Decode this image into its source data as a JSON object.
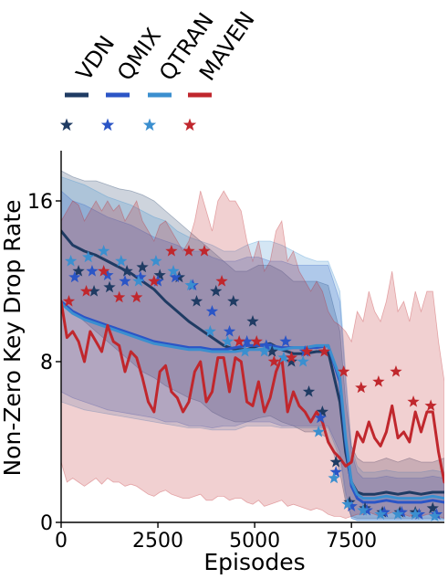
{
  "chart_data": {
    "type": "line",
    "title": "",
    "xlabel": "Episodes",
    "ylabel": "Non-Zero Key Drop Rate",
    "xlim": [
      0,
      9900
    ],
    "ylim": [
      0,
      18.5
    ],
    "xticks": [
      0,
      2500,
      5000,
      7500
    ],
    "xtick_labels": [
      "0",
      "2500",
      "5000",
      "7500"
    ],
    "yticks": [
      0,
      8,
      16
    ],
    "ytick_labels": [
      "0",
      "8",
      "16"
    ],
    "grid": false,
    "legend_position": "top",
    "series": [
      {
        "name": "VDN",
        "color": "#1f3b63",
        "x": [
          0,
          300,
          600,
          900,
          1200,
          1500,
          1800,
          2100,
          2400,
          2700,
          3000,
          3300,
          3600,
          3900,
          4200,
          4500,
          4800,
          5100,
          5400,
          5700,
          6000,
          6300,
          6600,
          6900,
          7200,
          7350,
          7500,
          7650,
          7800,
          8100,
          8400,
          8700,
          9000,
          9300,
          9600,
          9900
        ],
        "y": [
          14.5,
          13.8,
          13.5,
          13.3,
          13.0,
          12.7,
          12.4,
          12.0,
          11.6,
          11.0,
          10.5,
          10.0,
          9.6,
          9.2,
          8.8,
          8.6,
          8.6,
          8.8,
          8.9,
          8.6,
          8.4,
          8.4,
          8.5,
          8.5,
          6.0,
          3.5,
          2.0,
          1.5,
          1.4,
          1.4,
          1.5,
          1.4,
          1.5,
          1.4,
          1.5,
          1.5
        ],
        "lower": [
          11.0,
          10.5,
          10.0,
          9.5,
          9.0,
          8.5,
          8.0,
          7.5,
          7.2,
          6.8,
          6.5,
          6.2,
          6.0,
          5.5,
          5.2,
          5.0,
          5.0,
          5.2,
          5.3,
          5.0,
          4.8,
          4.5,
          4.5,
          4.2,
          2.5,
          1.0,
          0.3,
          0.2,
          0.2,
          0.2,
          0.2,
          0.2,
          0.2,
          0.2,
          0.2,
          0.2
        ],
        "upper": [
          17.5,
          17.2,
          17.0,
          17.0,
          16.8,
          16.6,
          16.5,
          16.3,
          16.0,
          15.5,
          15.0,
          14.5,
          14.0,
          13.5,
          13.0,
          12.5,
          12.5,
          12.8,
          12.8,
          12.5,
          12.0,
          12.0,
          12.0,
          11.8,
          9.5,
          6.0,
          3.8,
          3.2,
          3.0,
          3.0,
          3.2,
          3.0,
          3.2,
          3.0,
          3.0,
          3.2
        ],
        "markers_x": [
          450,
          850,
          1250,
          1700,
          2100,
          2550,
          3050,
          3500,
          4000,
          4450,
          4950,
          5450,
          5950,
          6400,
          6750,
          7100,
          7450,
          7850,
          8300,
          8750,
          9150,
          9600
        ],
        "markers_y": [
          12.5,
          11.5,
          11.7,
          12.5,
          12.7,
          12.3,
          12.2,
          11.0,
          11.5,
          11.0,
          10.0,
          8.5,
          8.0,
          6.5,
          5.5,
          3.0,
          1.0,
          0.7,
          0.5,
          0.5,
          0.5,
          0.7
        ]
      },
      {
        "name": "QMIX",
        "color": "#2b55c6",
        "x": [
          0,
          300,
          600,
          900,
          1200,
          1500,
          1800,
          2100,
          2400,
          2700,
          3000,
          3300,
          3600,
          3900,
          4200,
          4500,
          4800,
          5100,
          5400,
          5700,
          6000,
          6300,
          6600,
          6900,
          7200,
          7350,
          7500,
          7650,
          7800,
          8100,
          8400,
          8700,
          9000,
          9300,
          9600,
          9900
        ],
        "y": [
          11.0,
          10.5,
          10.2,
          10.0,
          9.8,
          9.6,
          9.4,
          9.2,
          9.0,
          8.9,
          8.8,
          8.7,
          8.7,
          8.6,
          8.6,
          8.7,
          8.8,
          8.8,
          8.8,
          8.7,
          8.7,
          8.7,
          8.7,
          8.8,
          7.0,
          4.0,
          1.8,
          1.2,
          1.0,
          1.0,
          1.1,
          1.0,
          1.0,
          1.0,
          1.1,
          1.0
        ],
        "lower": [
          6.5,
          6.2,
          6.0,
          5.8,
          5.6,
          5.5,
          5.4,
          5.3,
          5.2,
          5.0,
          5.0,
          4.8,
          4.8,
          4.7,
          4.8,
          4.8,
          5.0,
          5.0,
          5.0,
          4.8,
          4.8,
          4.8,
          4.8,
          4.8,
          3.5,
          1.5,
          0.2,
          0.1,
          0.1,
          0.1,
          0.1,
          0.1,
          0.1,
          0.1,
          0.1,
          0.1
        ],
        "upper": [
          16.5,
          16.0,
          15.8,
          15.5,
          15.2,
          15.0,
          14.8,
          14.5,
          14.2,
          14.0,
          13.8,
          13.5,
          13.5,
          13.2,
          13.0,
          13.0,
          13.2,
          13.2,
          13.0,
          13.0,
          12.8,
          12.8,
          12.8,
          12.8,
          11.0,
          7.0,
          3.5,
          2.5,
          2.2,
          2.2,
          2.3,
          2.2,
          2.2,
          2.2,
          2.3,
          2.2
        ],
        "markers_x": [
          350,
          800,
          1200,
          1650,
          2050,
          2500,
          2950,
          3400,
          3900,
          4350,
          4800,
          5300,
          5800,
          6300,
          6700,
          7100,
          7500,
          7900,
          8350,
          8800,
          9250,
          9700
        ],
        "markers_y": [
          12.2,
          12.5,
          12.3,
          12.0,
          12.2,
          12.0,
          12.2,
          11.8,
          10.5,
          9.5,
          9.0,
          8.8,
          9.0,
          8.5,
          5.2,
          2.5,
          0.8,
          0.6,
          0.5,
          0.5,
          0.4,
          0.4
        ]
      },
      {
        "name": "QTRAN",
        "color": "#3b8fcf",
        "x": [
          0,
          300,
          600,
          900,
          1200,
          1500,
          1800,
          2100,
          2400,
          2700,
          3000,
          3300,
          3600,
          3900,
          4200,
          4500,
          4800,
          5100,
          5400,
          5700,
          6000,
          6300,
          6600,
          6900,
          7200,
          7350,
          7500,
          7650,
          7800,
          8100,
          8400,
          8700,
          9000,
          9300,
          9600,
          9900
        ],
        "y": [
          10.9,
          10.4,
          10.1,
          9.9,
          9.7,
          9.5,
          9.3,
          9.1,
          8.9,
          8.8,
          8.7,
          8.6,
          8.6,
          8.5,
          8.5,
          8.5,
          8.6,
          8.6,
          8.7,
          8.6,
          8.7,
          8.7,
          8.8,
          8.8,
          7.2,
          4.2,
          2.0,
          1.4,
          1.2,
          1.2,
          1.3,
          1.2,
          1.2,
          1.2,
          1.3,
          1.2
        ],
        "lower": [
          6.0,
          5.8,
          5.6,
          5.5,
          5.4,
          5.3,
          5.2,
          5.1,
          5.0,
          4.9,
          4.8,
          4.7,
          4.7,
          4.6,
          4.6,
          4.6,
          4.8,
          4.8,
          4.8,
          4.7,
          4.7,
          4.7,
          4.7,
          4.7,
          3.2,
          1.2,
          0.2,
          0.1,
          0.1,
          0.1,
          0.1,
          0.1,
          0.1,
          0.1,
          0.1,
          0.1
        ],
        "upper": [
          17.2,
          17.0,
          16.8,
          16.5,
          16.2,
          16.0,
          15.8,
          15.5,
          15.2,
          15.0,
          14.5,
          14.2,
          14.0,
          13.8,
          13.5,
          13.5,
          13.8,
          14.0,
          14.0,
          13.8,
          13.5,
          13.2,
          13.0,
          13.0,
          11.5,
          7.5,
          3.8,
          2.8,
          2.5,
          2.5,
          2.6,
          2.5,
          2.5,
          2.5,
          2.6,
          2.5
        ],
        "markers_x": [
          250,
          700,
          1100,
          1550,
          2000,
          2450,
          2900,
          3350,
          3850,
          4300,
          4750,
          5250,
          5750,
          6250,
          6650,
          7050,
          7400,
          7800,
          8250,
          8700,
          9150,
          9650
        ],
        "markers_y": [
          13.0,
          13.2,
          13.5,
          13.0,
          12.0,
          13.0,
          12.5,
          11.8,
          9.5,
          9.0,
          8.5,
          8.5,
          8.2,
          8.0,
          4.5,
          2.2,
          0.9,
          0.6,
          0.4,
          0.4,
          0.4,
          0.3
        ]
      },
      {
        "name": "MAVEN",
        "color": "#c0272d",
        "x": [
          0,
          150,
          300,
          450,
          600,
          750,
          900,
          1050,
          1200,
          1350,
          1500,
          1650,
          1800,
          1950,
          2100,
          2250,
          2400,
          2550,
          2700,
          2850,
          3000,
          3150,
          3300,
          3450,
          3600,
          3750,
          3900,
          4050,
          4200,
          4350,
          4500,
          4650,
          4800,
          4950,
          5100,
          5250,
          5400,
          5550,
          5700,
          5850,
          6000,
          6150,
          6300,
          6450,
          6600,
          6750,
          6900,
          7050,
          7200,
          7350,
          7500,
          7650,
          7800,
          7950,
          8100,
          8250,
          8400,
          8550,
          8700,
          8850,
          9000,
          9150,
          9300,
          9450,
          9600,
          9750,
          9900
        ],
        "y": [
          11.0,
          9.2,
          9.5,
          9.0,
          8.0,
          9.5,
          9.0,
          8.5,
          9.8,
          9.0,
          8.8,
          7.5,
          8.5,
          8.2,
          7.2,
          6.0,
          5.5,
          7.5,
          7.8,
          6.5,
          6.2,
          5.5,
          6.0,
          7.5,
          8.0,
          6.0,
          6.5,
          8.2,
          8.2,
          6.5,
          8.2,
          8.0,
          6.0,
          5.8,
          7.0,
          5.5,
          6.2,
          7.5,
          8.2,
          5.5,
          6.5,
          5.8,
          5.5,
          5.0,
          5.5,
          5.0,
          4.0,
          3.5,
          3.2,
          2.8,
          3.0,
          4.5,
          4.0,
          5.0,
          4.2,
          3.8,
          4.5,
          5.8,
          4.2,
          4.5,
          4.0,
          5.5,
          4.5,
          5.5,
          5.5,
          3.5,
          2.0
        ],
        "lower": [
          3.0,
          2.0,
          2.2,
          2.0,
          1.8,
          2.0,
          2.2,
          1.9,
          2.2,
          2.0,
          2.0,
          1.8,
          1.9,
          1.8,
          1.6,
          1.4,
          1.3,
          1.5,
          1.6,
          1.4,
          1.3,
          1.2,
          1.2,
          1.3,
          1.4,
          1.1,
          1.1,
          1.3,
          1.3,
          1.1,
          1.2,
          1.2,
          1.0,
          0.9,
          1.1,
          0.8,
          0.9,
          1.0,
          1.1,
          0.8,
          0.9,
          0.8,
          0.7,
          0.6,
          0.7,
          0.6,
          0.4,
          0.3,
          0.3,
          0.2,
          0.3,
          0.4,
          0.4,
          0.5,
          0.4,
          0.3,
          0.4,
          0.5,
          0.3,
          0.4,
          0.3,
          0.4,
          0.3,
          0.4,
          0.4,
          0.3,
          0.2
        ],
        "upper": [
          15.0,
          15.5,
          16.0,
          15.8,
          15.0,
          15.5,
          16.0,
          15.5,
          16.0,
          15.5,
          15.8,
          15.0,
          15.5,
          16.0,
          15.0,
          14.5,
          14.0,
          14.8,
          15.0,
          14.5,
          14.0,
          13.5,
          14.0,
          15.0,
          16.5,
          15.5,
          14.5,
          16.0,
          16.5,
          16.0,
          16.0,
          15.5,
          14.0,
          13.0,
          14.0,
          12.5,
          13.0,
          14.5,
          15.0,
          13.0,
          13.5,
          12.5,
          12.0,
          11.5,
          12.0,
          11.5,
          10.5,
          10.0,
          9.8,
          9.5,
          9.0,
          10.5,
          10.0,
          11.5,
          10.5,
          10.0,
          11.0,
          12.5,
          10.5,
          11.0,
          10.0,
          11.5,
          10.5,
          11.5,
          11.5,
          9.0,
          7.0
        ],
        "markers_x": [
          200,
          650,
          1100,
          1500,
          1950,
          2400,
          2850,
          3300,
          3700,
          4150,
          4600,
          5050,
          5500,
          5950,
          6350,
          6800,
          7300,
          7750,
          8200,
          8650,
          9100,
          9550
        ],
        "markers_y": [
          11.0,
          11.5,
          12.5,
          11.2,
          11.2,
          12.0,
          13.5,
          13.5,
          13.5,
          12.0,
          9.0,
          9.0,
          8.0,
          8.2,
          8.5,
          8.5,
          7.5,
          6.7,
          7.0,
          7.5,
          6.0,
          5.8
        ]
      }
    ]
  }
}
